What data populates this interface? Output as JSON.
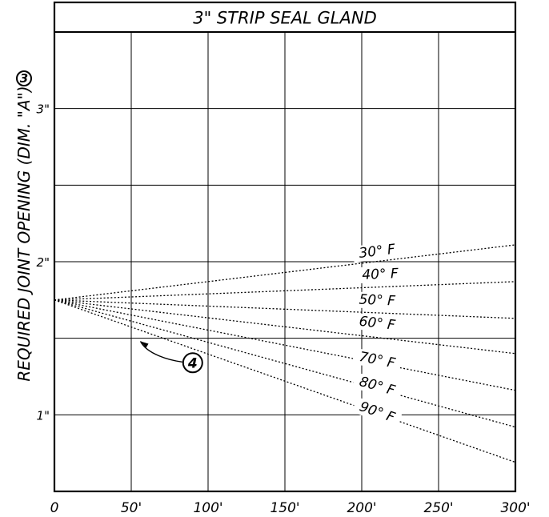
{
  "chart_data": {
    "type": "line",
    "title": "3\" STRIP SEAL GLAND",
    "ylabel": "REQUIRED JOINT OPENING (DIM. \"A\")",
    "ylabel_note": "3",
    "xlabel": "",
    "xlim": [
      0,
      300
    ],
    "ylim": [
      0.5,
      3.5
    ],
    "x_ticks": [
      {
        "value": 0,
        "label": "0"
      },
      {
        "value": 50,
        "label": "50'"
      },
      {
        "value": 100,
        "label": "100'"
      },
      {
        "value": 150,
        "label": "150'"
      },
      {
        "value": 200,
        "label": "200'"
      },
      {
        "value": 250,
        "label": "250'"
      },
      {
        "value": 300,
        "label": "300'"
      }
    ],
    "y_gridlines": [
      1.0,
      1.5,
      2.0,
      2.5,
      3.0
    ],
    "y_ticks": [
      {
        "value": 1,
        "label": "1\""
      },
      {
        "value": 2,
        "label": "2\""
      },
      {
        "value": 3,
        "label": "3\""
      }
    ],
    "grid": true,
    "line_style": "dotted",
    "series": [
      {
        "name": "30° F",
        "x": [
          0,
          300
        ],
        "y": [
          1.75,
          2.11
        ],
        "label_at": [
          210,
          2.04
        ]
      },
      {
        "name": "40° F",
        "x": [
          0,
          300
        ],
        "y": [
          1.75,
          1.87
        ],
        "label_at": [
          212,
          1.89
        ]
      },
      {
        "name": "50° F",
        "x": [
          0,
          300
        ],
        "y": [
          1.75,
          1.63
        ],
        "label_at": [
          210,
          1.72
        ]
      },
      {
        "name": "60° F",
        "x": [
          0,
          300
        ],
        "y": [
          1.75,
          1.4
        ],
        "label_at": [
          210,
          1.57
        ]
      },
      {
        "name": "70° F",
        "x": [
          0,
          300
        ],
        "y": [
          1.75,
          1.16
        ],
        "label_at": [
          210,
          1.33
        ]
      },
      {
        "name": "80° F",
        "x": [
          0,
          300
        ],
        "y": [
          1.75,
          0.92
        ],
        "label_at": [
          210,
          1.16
        ]
      },
      {
        "name": "90° F",
        "x": [
          0,
          300
        ],
        "y": [
          1.75,
          0.69
        ],
        "label_at": [
          210,
          0.99
        ]
      }
    ],
    "annotation": {
      "text": "4",
      "circle_at": [
        90,
        1.34
      ],
      "arrow_to": [
        56,
        1.48
      ]
    }
  }
}
